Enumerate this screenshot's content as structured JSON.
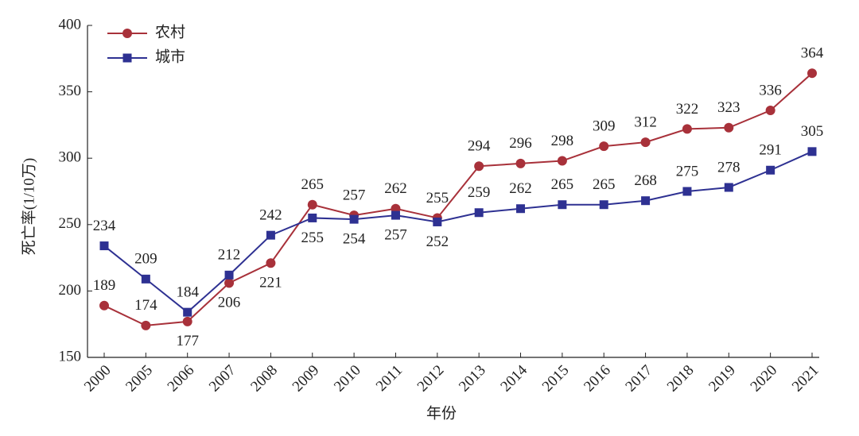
{
  "chart_data": {
    "type": "line",
    "x_label": "年份",
    "y_label": "死亡率(1/10万)",
    "categories": [
      "2000",
      "2005",
      "2006",
      "2007",
      "2008",
      "2009",
      "2010",
      "2011",
      "2012",
      "2013",
      "2014",
      "2015",
      "2016",
      "2017",
      "2018",
      "2019",
      "2020",
      "2021"
    ],
    "series": [
      {
        "name": "农村",
        "color": "#a8313a",
        "marker": "circle",
        "values": [
          189,
          174,
          177,
          206,
          221,
          265,
          257,
          262,
          255,
          294,
          296,
          298,
          309,
          312,
          322,
          323,
          336,
          364
        ]
      },
      {
        "name": "城市",
        "color": "#2e3192",
        "marker": "square",
        "values": [
          234,
          209,
          184,
          212,
          242,
          255,
          254,
          257,
          252,
          259,
          262,
          265,
          265,
          268,
          275,
          278,
          291,
          305
        ]
      }
    ],
    "ylim": [
      150,
      400
    ],
    "yticks": [
      150,
      200,
      250,
      300,
      350,
      400
    ],
    "legend": "upper left"
  }
}
